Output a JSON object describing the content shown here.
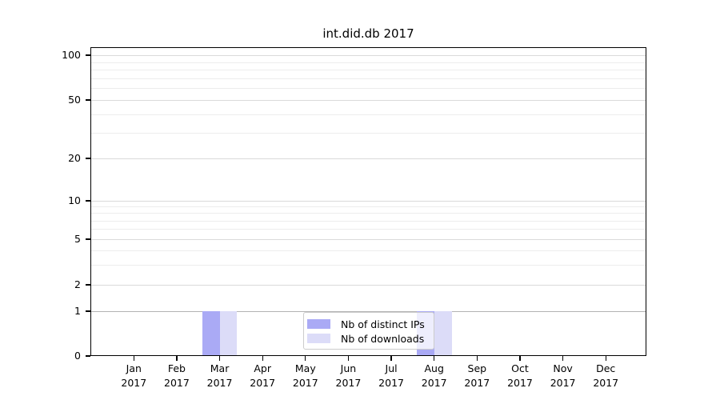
{
  "chart_data": {
    "type": "bar",
    "title": "int.did.db 2017",
    "categories": [
      "Jan 2017",
      "Feb 2017",
      "Mar 2017",
      "Apr 2017",
      "May 2017",
      "Jun 2017",
      "Jul 2017",
      "Aug 2017",
      "Sep 2017",
      "Oct 2017",
      "Nov 2017",
      "Dec 2017"
    ],
    "series": [
      {
        "name": "Nb of distinct IPs",
        "color": "#aaaaf5",
        "values": [
          0,
          0,
          1,
          0,
          0,
          0,
          0,
          1,
          0,
          0,
          0,
          0
        ]
      },
      {
        "name": "Nb of downloads",
        "color": "#dcdcf8",
        "values": [
          0,
          0,
          1,
          0,
          0,
          0,
          0,
          1,
          0,
          0,
          0,
          0
        ]
      }
    ],
    "xlabel": "",
    "ylabel": "",
    "yscale": "symlog",
    "y_tick_values": [
      0,
      1,
      2,
      5,
      10,
      20,
      50,
      100
    ],
    "y_tick_labels": [
      "0",
      "1",
      "2",
      "5",
      "10",
      "20",
      "50",
      "100"
    ],
    "ylim": [
      0,
      115
    ],
    "grid": true,
    "legend_position": "lower center"
  },
  "colors": {
    "grid_minor": "#ececec",
    "grid_major": "#dadada",
    "grid_baseline_one": "#b3b3b3",
    "legend_border": "#cccccc",
    "text": "#000000"
  }
}
